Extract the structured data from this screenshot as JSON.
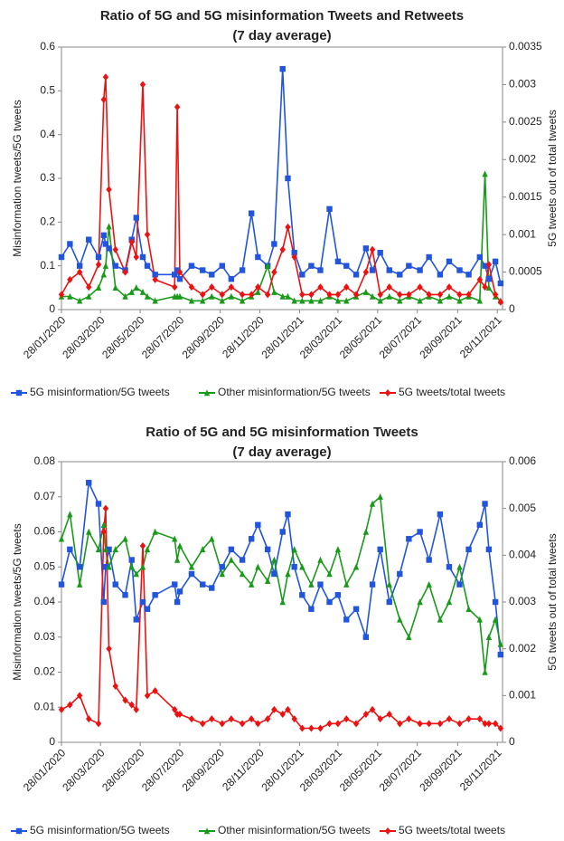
{
  "chart_data": [
    {
      "type": "line",
      "title": "Ratio of 5G and 5G misinformation Tweets and Retweets",
      "subtitle": "(7 day average)",
      "ylabel": "Misinformation tweets/5G tweets",
      "y2label": "5G tweets out of total tweets",
      "x": [
        "28/01/2020",
        "10/02/2020",
        "25/02/2020",
        "10/03/2020",
        "25/03/2020",
        "02/04/2020",
        "05/04/2020",
        "10/04/2020",
        "20/04/2020",
        "05/05/2020",
        "15/05/2020",
        "22/05/2020",
        "01/06/2020",
        "08/06/2020",
        "20/06/2020",
        "20/07/2020",
        "24/07/2020",
        "28/07/2020",
        "15/08/2020",
        "01/09/2020",
        "15/09/2020",
        "01/10/2020",
        "15/10/2020",
        "01/11/2020",
        "15/11/2020",
        "25/11/2020",
        "10/12/2020",
        "20/12/2020",
        "02/01/2021",
        "10/01/2021",
        "20/01/2021",
        "01/02/2021",
        "15/02/2021",
        "01/03/2021",
        "15/03/2021",
        "28/03/2021",
        "10/04/2021",
        "25/04/2021",
        "10/05/2021",
        "20/05/2021",
        "01/06/2021",
        "15/06/2021",
        "01/07/2021",
        "15/07/2021",
        "01/08/2021",
        "15/08/2021",
        "01/09/2021",
        "15/09/2021",
        "01/10/2021",
        "15/10/2021",
        "01/11/2021",
        "09/11/2021",
        "15/11/2021",
        "25/11/2021",
        "03/12/2021"
      ],
      "xlim": [
        "28/01/2020",
        "06/12/2021"
      ],
      "xticks": [
        "28/01/2020",
        "28/03/2020",
        "28/05/2020",
        "28/07/2020",
        "28/09/2020",
        "28/11/2020",
        "28/01/2021",
        "28/03/2021",
        "28/05/2021",
        "28/07/2021",
        "28/09/2021",
        "28/11/2021"
      ],
      "ylim": [
        0,
        0.6
      ],
      "yticks": [
        0,
        0.1,
        0.2,
        0.3,
        0.4,
        0.5,
        0.6
      ],
      "y2lim": [
        0,
        0.0035
      ],
      "y2ticks": [
        0,
        0.0005,
        0.001,
        0.0015,
        0.002,
        0.0025,
        0.003,
        0.0035
      ],
      "series": [
        {
          "name": "5G misinformation/5G tweets",
          "color": "#2255dd",
          "marker": "square",
          "axis": "y",
          "values": [
            0.12,
            0.15,
            0.1,
            0.16,
            0.12,
            0.17,
            0.15,
            0.14,
            0.1,
            0.09,
            0.16,
            0.21,
            0.12,
            0.1,
            0.08,
            0.08,
            0.09,
            0.07,
            0.1,
            0.09,
            0.08,
            0.1,
            0.07,
            0.09,
            0.22,
            0.12,
            0.1,
            0.15,
            0.55,
            0.3,
            0.13,
            0.08,
            0.1,
            0.09,
            0.23,
            0.11,
            0.1,
            0.08,
            0.14,
            0.09,
            0.13,
            0.09,
            0.08,
            0.1,
            0.09,
            0.12,
            0.08,
            0.11,
            0.09,
            0.08,
            0.12,
            0.1,
            0.07,
            0.11,
            0.06
          ]
        },
        {
          "name": "Other misinformation/5G tweets",
          "color": "#1a9a1a",
          "marker": "triangle",
          "axis": "y",
          "values": [
            0.03,
            0.03,
            0.02,
            0.03,
            0.05,
            0.08,
            0.1,
            0.19,
            0.05,
            0.03,
            0.04,
            0.05,
            0.04,
            0.03,
            0.02,
            0.03,
            0.03,
            0.03,
            0.02,
            0.02,
            0.03,
            0.02,
            0.03,
            0.02,
            0.03,
            0.04,
            0.1,
            0.04,
            0.03,
            0.03,
            0.02,
            0.02,
            0.02,
            0.02,
            0.03,
            0.02,
            0.02,
            0.03,
            0.04,
            0.03,
            0.02,
            0.03,
            0.02,
            0.03,
            0.02,
            0.03,
            0.02,
            0.03,
            0.02,
            0.03,
            0.02,
            0.31,
            0.05,
            0.03,
            0.02
          ]
        },
        {
          "name": "5G tweets/total tweets",
          "color": "#ee1111",
          "marker": "diamond",
          "axis": "y2",
          "values": [
            0.0002,
            0.0004,
            0.0005,
            0.0003,
            0.0006,
            0.0028,
            0.0031,
            0.0016,
            0.0008,
            0.0005,
            0.0009,
            0.0007,
            0.003,
            0.001,
            0.0004,
            0.0003,
            0.0027,
            0.0005,
            0.0003,
            0.0002,
            0.0003,
            0.0002,
            0.0003,
            0.0002,
            0.0002,
            0.0003,
            0.0002,
            0.0005,
            0.0008,
            0.0011,
            0.0007,
            0.0002,
            0.0002,
            0.0003,
            0.0002,
            0.0002,
            0.0003,
            0.0002,
            0.0005,
            0.0008,
            0.0002,
            0.0003,
            0.0002,
            0.0002,
            0.0003,
            0.0002,
            0.0002,
            0.0003,
            0.0002,
            0.0002,
            0.0004,
            0.0003,
            0.0006,
            0.0002,
            0.0001
          ]
        }
      ]
    },
    {
      "type": "line",
      "title": "Ratio of 5G and 5G misinformation Tweets",
      "subtitle": "(7 day average)",
      "ylabel": "Misinformation tweets/5G tweets",
      "y2label": "5G tweets out of total tweets",
      "x": [
        "28/01/2020",
        "10/02/2020",
        "25/02/2020",
        "10/03/2020",
        "25/03/2020",
        "02/04/2020",
        "05/04/2020",
        "10/04/2020",
        "20/04/2020",
        "05/05/2020",
        "15/05/2020",
        "22/05/2020",
        "01/06/2020",
        "08/06/2020",
        "20/06/2020",
        "20/07/2020",
        "24/07/2020",
        "28/07/2020",
        "15/08/2020",
        "01/09/2020",
        "15/09/2020",
        "01/10/2020",
        "15/10/2020",
        "01/11/2020",
        "15/11/2020",
        "25/11/2020",
        "10/12/2020",
        "20/12/2020",
        "02/01/2021",
        "10/01/2021",
        "20/01/2021",
        "01/02/2021",
        "15/02/2021",
        "01/03/2021",
        "15/03/2021",
        "28/03/2021",
        "10/04/2021",
        "25/04/2021",
        "10/05/2021",
        "20/05/2021",
        "01/06/2021",
        "15/06/2021",
        "01/07/2021",
        "15/07/2021",
        "01/08/2021",
        "15/08/2021",
        "01/09/2021",
        "15/09/2021",
        "01/10/2021",
        "15/10/2021",
        "01/11/2021",
        "09/11/2021",
        "15/11/2021",
        "25/11/2021",
        "03/12/2021"
      ],
      "xlim": [
        "28/01/2020",
        "06/12/2021"
      ],
      "xticks": [
        "28/01/2020",
        "28/03/2020",
        "28/05/2020",
        "28/07/2020",
        "28/09/2020",
        "28/11/2020",
        "28/01/2021",
        "28/03/2021",
        "28/05/2021",
        "28/07/2021",
        "28/09/2021",
        "28/11/2021"
      ],
      "ylim": [
        0,
        0.08
      ],
      "yticks": [
        0,
        0.01,
        0.02,
        0.03,
        0.04,
        0.05,
        0.06,
        0.07,
        0.08
      ],
      "y2lim": [
        0,
        0.006
      ],
      "y2ticks": [
        0,
        0.001,
        0.002,
        0.003,
        0.004,
        0.005,
        0.006
      ],
      "series": [
        {
          "name": "5G misinformation/5G tweets",
          "color": "#2255dd",
          "marker": "square",
          "axis": "y",
          "values": [
            0.045,
            0.055,
            0.05,
            0.074,
            0.068,
            0.04,
            0.05,
            0.055,
            0.045,
            0.042,
            0.052,
            0.035,
            0.04,
            0.038,
            0.042,
            0.045,
            0.04,
            0.043,
            0.048,
            0.045,
            0.044,
            0.05,
            0.055,
            0.052,
            0.058,
            0.062,
            0.055,
            0.048,
            0.06,
            0.065,
            0.05,
            0.042,
            0.038,
            0.045,
            0.04,
            0.042,
            0.035,
            0.038,
            0.03,
            0.045,
            0.055,
            0.04,
            0.048,
            0.058,
            0.06,
            0.052,
            0.065,
            0.05,
            0.045,
            0.055,
            0.062,
            0.068,
            0.055,
            0.04,
            0.025
          ]
        },
        {
          "name": "Other misinformation/5G tweets",
          "color": "#1a9a1a",
          "marker": "triangle",
          "axis": "y",
          "values": [
            0.058,
            0.065,
            0.045,
            0.06,
            0.055,
            0.062,
            0.055,
            0.05,
            0.055,
            0.058,
            0.05,
            0.048,
            0.05,
            0.055,
            0.06,
            0.058,
            0.052,
            0.056,
            0.05,
            0.055,
            0.058,
            0.048,
            0.052,
            0.048,
            0.045,
            0.05,
            0.046,
            0.052,
            0.04,
            0.048,
            0.055,
            0.05,
            0.045,
            0.052,
            0.048,
            0.055,
            0.045,
            0.05,
            0.06,
            0.068,
            0.07,
            0.045,
            0.035,
            0.03,
            0.04,
            0.045,
            0.035,
            0.04,
            0.05,
            0.038,
            0.035,
            0.02,
            0.03,
            0.035,
            0.028
          ]
        },
        {
          "name": "5G tweets/total tweets",
          "color": "#ee1111",
          "marker": "diamond",
          "axis": "y2",
          "values": [
            0.0007,
            0.0008,
            0.001,
            0.0005,
            0.0004,
            0.0045,
            0.005,
            0.002,
            0.0012,
            0.0009,
            0.0008,
            0.0007,
            0.0042,
            0.001,
            0.0011,
            0.0007,
            0.0006,
            0.0006,
            0.0005,
            0.0004,
            0.0005,
            0.0004,
            0.0005,
            0.0004,
            0.0005,
            0.0004,
            0.0005,
            0.0007,
            0.0006,
            0.0007,
            0.0005,
            0.0003,
            0.0003,
            0.0003,
            0.0004,
            0.0004,
            0.0005,
            0.0004,
            0.0006,
            0.0007,
            0.0005,
            0.0006,
            0.0004,
            0.0005,
            0.0004,
            0.0004,
            0.0004,
            0.0005,
            0.0004,
            0.0005,
            0.0005,
            0.0004,
            0.0004,
            0.0004,
            0.0003
          ]
        }
      ]
    }
  ]
}
